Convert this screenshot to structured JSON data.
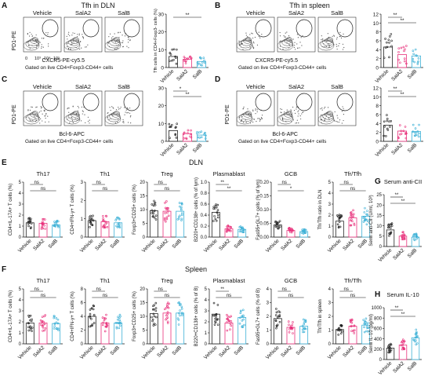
{
  "panelA": {
    "letter": "A",
    "title": "Tfh in DLN",
    "ylab": "PD1-PE",
    "xlab": "CXCR5-PE-cy5.5",
    "gate": "Gated on live CD4+Foxp3-CD44+ cells",
    "cols": [
      "Vehicle",
      "SalA2",
      "SalB"
    ],
    "yticks": [
      "0",
      "10",
      "20",
      "30"
    ],
    "ticks": [
      "0",
      "10³",
      "10⁴",
      "10⁵"
    ],
    "bars": [
      6.2,
      4.6,
      3.4
    ],
    "sig": [
      "**"
    ]
  },
  "panelB": {
    "letter": "B",
    "title": "Tfh in spleen",
    "xlab": "CXCR5-PE-cy5.5",
    "gate": "Gated on live CD4+Foxp3-CD44+ cells",
    "cols": [
      "Vehicle",
      "SalA2",
      "SalB"
    ],
    "yticks": [
      "0",
      "2",
      "4",
      "6",
      "8",
      "10",
      "12"
    ],
    "bars": [
      4.6,
      2.9,
      2.6
    ],
    "sig": [
      "**",
      "**"
    ]
  },
  "panelC": {
    "letter": "C",
    "ylab": "PD1-PE",
    "xlab": "Bcl-6-APC",
    "gate": "Gated on live CD4+Foxp3-CD44+ cells",
    "cols": [
      "Vehicle",
      "SalA2",
      "SalB"
    ],
    "yticks": [
      "0",
      "10",
      "20",
      "30"
    ],
    "bars": [
      6.0,
      4.3,
      3.5
    ],
    "sig": [
      "*",
      "**"
    ]
  },
  "panelD": {
    "letter": "D",
    "ylab": "PD1-PE",
    "xlab": "Bcl-6-APC",
    "gate": "Gated on live CD4+Foxp3-CD44+ cells",
    "cols": [
      "Vehicle",
      "SalA2",
      "SalB"
    ],
    "yticks": [
      "0",
      "2",
      "4",
      "6",
      "8",
      "10",
      "12"
    ],
    "bars": [
      3.6,
      2.3,
      2.2
    ],
    "sig": [
      "**",
      "**"
    ]
  },
  "panelE": {
    "letter": "E",
    "title": "DLN",
    "plots": [
      {
        "title": "Th17",
        "ylab": "CD4+IL-17A+ T cells (%)",
        "yticks": [
          "0",
          "1",
          "2",
          "3",
          "4",
          "5"
        ],
        "sig": [
          "ns",
          "ns"
        ]
      },
      {
        "title": "Th1",
        "ylab": "CD4+IFN-γ+ T cells (%)",
        "yticks": [
          "0",
          "1",
          "2",
          "3"
        ],
        "sig": [
          "ns",
          "ns"
        ]
      },
      {
        "title": "Treg",
        "ylab": "Foxp3+CD25+ cells (%)",
        "yticks": [
          "0",
          "5",
          "10",
          "15",
          "20"
        ],
        "sig": [
          "ns",
          "ns"
        ]
      },
      {
        "title": "Plasmablast",
        "ylab": "B220+CD138+ cells (% of lym)",
        "yticks": [
          "0.0",
          "0.2",
          "0.4",
          "0.6",
          "0.8",
          "1.0"
        ],
        "sig": [
          "**",
          "**"
        ]
      },
      {
        "title": "GCB",
        "ylab": "Fas95+GL7+ cells (% of lym)",
        "yticks": [
          "0.00",
          "0.05",
          "0.10",
          "0.15",
          "0.20"
        ],
        "sig": [
          "ns",
          "*"
        ]
      },
      {
        "title": "Tfr/Tfh",
        "ylab": "Tfr/Tfh ratio in DLN",
        "yticks": [
          "0",
          "1",
          "2",
          "3",
          "4",
          "5"
        ],
        "sig": [
          "ns",
          "ns"
        ]
      }
    ]
  },
  "panelF": {
    "letter": "F",
    "title": "Spleen",
    "plots": [
      {
        "title": "Th17",
        "ylab": "CD4+IL-17A+ T cells (%)",
        "yticks": [
          "0",
          "1",
          "2",
          "3",
          "4",
          "5"
        ],
        "sig": [
          "ns",
          "ns"
        ]
      },
      {
        "title": "Th1",
        "ylab": "CD4+IFN-γ+ T cells (%)",
        "yticks": [
          "0",
          "2",
          "4",
          "6",
          "8"
        ],
        "sig": [
          "ns",
          "ns"
        ]
      },
      {
        "title": "Treg",
        "ylab": "Foxp3+CD25+ cells (%)",
        "yticks": [
          "0",
          "5",
          "10",
          "15",
          "20"
        ],
        "sig": [
          "ns",
          "ns"
        ]
      },
      {
        "title": "Plasmablast",
        "ylab": "B220+CD138+ cells (% of B)",
        "yticks": [
          "0",
          "1",
          "2",
          "3",
          "4",
          "5"
        ],
        "sig": [
          "**",
          "ns"
        ]
      },
      {
        "title": "GCB",
        "ylab": "Fas95+GL7+ cells (% of B)",
        "yticks": [
          "0",
          "1",
          "2",
          "3",
          "4"
        ],
        "sig": [
          "ns",
          "ns"
        ]
      },
      {
        "title": "Tfr/Tfh",
        "ylab": "Tfr/Tfh in spleen",
        "yticks": [
          "0",
          "1",
          "2",
          "3",
          "4"
        ],
        "sig": [
          "ns",
          "ns"
        ]
      }
    ]
  },
  "panelG": {
    "letter": "G",
    "title": "Serum anti-CII",
    "ylab": "Serm anti-CII (U/ml, 10³)",
    "yticks": [
      "0",
      "5",
      "10",
      "15",
      "20",
      "25"
    ],
    "sig": [
      "**",
      "**"
    ]
  },
  "panelH": {
    "letter": "H",
    "title": "Serum IL-10",
    "ylab": "Serm IL-10 (pg/ml)",
    "yticks": [
      "0",
      "200",
      "400",
      "600",
      "800",
      "1000"
    ],
    "sig": [
      "**",
      "**"
    ]
  },
  "groups": [
    "Vehicle",
    "SalA2",
    "SalB"
  ],
  "colors": {
    "vehicle": "#222222",
    "sala2": "#e8317b",
    "salb": "#3cb0d6"
  }
}
